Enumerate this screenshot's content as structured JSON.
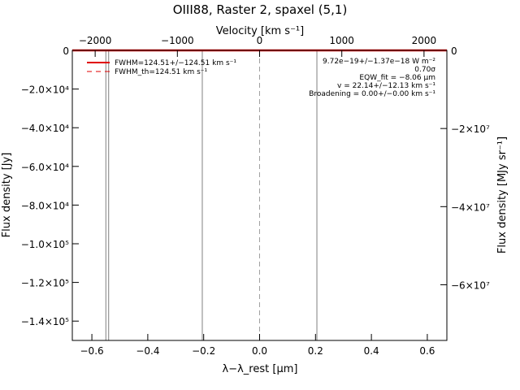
{
  "chart_data": {
    "type": "line",
    "title": "OIII88, Raster 2, spaxel (5,1)",
    "xlabel": "λ−λ_rest [μm]",
    "ylabel": "Flux density [Jy]",
    "top_xlabel": "Velocity [km s⁻¹]",
    "right_ylabel": "Flux density [MJy sr⁻¹]",
    "xlim": [
      -0.67,
      0.67
    ],
    "ylim": [
      -150000,
      0
    ],
    "x_ticks": [
      -0.6,
      -0.4,
      -0.2,
      0.0,
      0.2,
      0.4,
      0.6
    ],
    "x_tick_labels": [
      "−0.6",
      "−0.4",
      "−0.2",
      "0.0",
      "0.2",
      "0.4",
      "0.6"
    ],
    "y_ticks": [
      0,
      -20000,
      -40000,
      -60000,
      -80000,
      -100000,
      -120000,
      -140000
    ],
    "y_tick_labels": [
      "0",
      "−2.0×10⁴",
      "−4.0×10⁴",
      "−6.0×10⁴",
      "−8.0×10⁴",
      "−1.0×10⁵",
      "−1.2×10⁵",
      "−1.4×10⁵"
    ],
    "top_x_ticks": [
      -2000,
      -1000,
      0,
      1000,
      2000
    ],
    "top_x_tick_labels": [
      "−2000",
      "−1000",
      "0",
      "1000",
      "2000"
    ],
    "top_x_per_um": 3400,
    "right_y_ticks": [
      0,
      -20000000,
      -40000000,
      -60000000
    ],
    "right_y_tick_labels": [
      "0",
      "−2×10⁷",
      "−4×10⁷",
      "−6×10⁷"
    ],
    "right_y_per_jy": 495,
    "vertical_lines": [
      {
        "x": -0.55,
        "style": "solid",
        "color": "#808080"
      },
      {
        "x": -0.54,
        "style": "solid",
        "color": "#808080"
      },
      {
        "x": -0.205,
        "style": "solid",
        "color": "#808080"
      },
      {
        "x": 0.205,
        "style": "solid",
        "color": "#808080"
      },
      {
        "x": 0.0,
        "style": "dashed",
        "color": "#a0a0a0"
      }
    ],
    "series": [
      {
        "color": "#e00000",
        "x": [
          -0.67,
          0.67
        ],
        "y": [
          0,
          0
        ]
      }
    ],
    "legend": {
      "placement": "top-left",
      "entries": [
        {
          "label": "FWHM=124.51+/−124.51 km s⁻¹",
          "style": "solid",
          "color": "#e00000"
        },
        {
          "label": "FWHM_th=124.51 km s⁻¹",
          "style": "dashed",
          "color": "#e00000"
        }
      ]
    },
    "annotations": [
      "9.72e−19+/−1.37e−18 W m⁻²",
      "0.70σ",
      "EQW_fit = −8.06 μm",
      "v = 22.14+/−12.13 km s⁻¹",
      "Broadening = 0.00+/−0.00 km s⁻¹"
    ],
    "grid": false
  }
}
